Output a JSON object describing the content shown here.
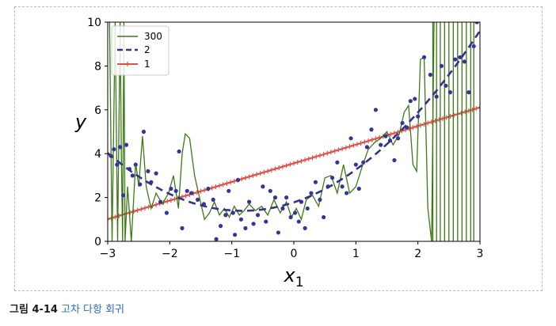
{
  "chart_data": {
    "type": "line",
    "xlabel": "x",
    "xlabel_sub": "1",
    "ylabel": "y",
    "xlim": [
      -3,
      3
    ],
    "ylim": [
      0,
      10
    ],
    "xticks": [
      -3,
      -2,
      -1,
      0,
      1,
      2,
      3
    ],
    "yticks": [
      0,
      2,
      4,
      6,
      8,
      10
    ],
    "xtick_labels": [
      "−3",
      "−2",
      "−1",
      "0",
      "1",
      "2",
      "3"
    ],
    "ytick_labels": [
      "0",
      "2",
      "4",
      "6",
      "8",
      "10"
    ],
    "legend_position": "top-left",
    "series": [
      {
        "name": "300",
        "color": "#3c7a16",
        "style": "solid"
      },
      {
        "name": "2",
        "color": "#33338a",
        "style": "dashed"
      },
      {
        "name": "1",
        "color": "#e0504b",
        "style": "solid-plus-markers"
      }
    ],
    "line_300": {
      "x": [
        -2.97,
        -2.93,
        -2.88,
        -2.84,
        -2.8,
        -2.78,
        -2.76,
        -2.74,
        -2.72,
        -2.68,
        -2.62,
        -2.55,
        -2.5,
        -2.44,
        -2.38,
        -2.3,
        -2.22,
        -2.12,
        -2.02,
        -1.94,
        -1.86,
        -1.8,
        -1.75,
        -1.68,
        -1.6,
        -1.52,
        -1.44,
        -1.36,
        -1.28,
        -1.2,
        -1.12,
        -1.04,
        -0.96,
        -0.88,
        -0.8,
        -0.72,
        -0.62,
        -0.52,
        -0.42,
        -0.32,
        -0.22,
        -0.12,
        -0.04,
        0.04,
        0.12,
        0.2,
        0.3,
        0.4,
        0.5,
        0.6,
        0.7,
        0.8,
        0.9,
        1.0,
        1.1,
        1.2,
        1.3,
        1.4,
        1.5,
        1.6,
        1.7,
        1.78,
        1.85,
        1.92,
        1.98,
        2.04,
        2.1,
        2.16,
        2.22,
        2.26
      ],
      "y": [
        10.0,
        0.0,
        10.0,
        0.0,
        10.0,
        4.0,
        0.0,
        10.0,
        0.0,
        2.5,
        0.0,
        3.6,
        2.5,
        4.8,
        2.5,
        1.5,
        2.2,
        1.7,
        2.2,
        3.0,
        1.5,
        4.0,
        4.9,
        4.7,
        3.0,
        2.0,
        1.0,
        1.3,
        1.8,
        1.2,
        1.5,
        1.1,
        1.6,
        1.2,
        1.4,
        1.7,
        1.4,
        1.6,
        1.2,
        1.9,
        1.3,
        1.8,
        1.1,
        1.5,
        1.0,
        1.9,
        2.1,
        1.6,
        2.9,
        3.0,
        2.2,
        3.5,
        2.2,
        2.5,
        3.4,
        4.2,
        4.5,
        4.7,
        5.0,
        4.4,
        4.9,
        5.9,
        6.2,
        3.5,
        3.2,
        8.3,
        8.4,
        1.5,
        0.0,
        10.0
      ],
      "spike_x": [
        2.24,
        2.3,
        2.36,
        2.43,
        2.5,
        2.57,
        2.64,
        2.71,
        2.78,
        2.85,
        2.9
      ]
    },
    "line_2": {
      "coefficients": [
        1.78,
        0.93,
        0.56
      ]
    },
    "line_1": {
      "coefficients": [
        3.56,
        0.85
      ]
    },
    "scatter_points": {
      "x": [
        -2.95,
        -2.9,
        -2.85,
        -2.8,
        -2.75,
        -2.7,
        -2.65,
        -2.6,
        -2.55,
        -2.48,
        -2.42,
        -2.35,
        -2.3,
        -2.22,
        -2.15,
        -2.05,
        -1.98,
        -1.9,
        -1.85,
        -1.8,
        -1.72,
        -1.65,
        -1.55,
        -1.45,
        -1.38,
        -1.3,
        -1.25,
        -1.18,
        -1.1,
        -1.05,
        -0.98,
        -0.95,
        -0.9,
        -0.85,
        -0.78,
        -0.72,
        -0.65,
        -0.58,
        -0.5,
        -0.45,
        -0.38,
        -0.3,
        -0.25,
        -0.18,
        -0.12,
        -0.05,
        0.02,
        0.08,
        0.12,
        0.18,
        0.22,
        0.28,
        0.35,
        0.42,
        0.48,
        0.55,
        0.62,
        0.7,
        0.78,
        0.85,
        0.92,
        1.0,
        1.05,
        1.12,
        1.18,
        1.25,
        1.32,
        1.4,
        1.48,
        1.55,
        1.62,
        1.68,
        1.75,
        1.82,
        1.88,
        1.95,
        2.0,
        2.1,
        2.2,
        2.3,
        2.38,
        2.45,
        2.52,
        2.6,
        2.68,
        2.75,
        2.82,
        2.9,
        2.95
      ],
      "y": [
        3.9,
        4.2,
        3.5,
        4.3,
        2.1,
        4.4,
        3.3,
        3.0,
        3.5,
        2.6,
        5.0,
        3.2,
        2.7,
        3.1,
        1.8,
        1.3,
        2.4,
        2.3,
        4.1,
        0.6,
        2.3,
        2.2,
        1.9,
        1.7,
        2.4,
        1.9,
        0.1,
        0.7,
        1.2,
        2.3,
        1.3,
        0.3,
        2.8,
        1.0,
        0.6,
        1.8,
        0.8,
        1.2,
        2.5,
        0.9,
        2.3,
        2.0,
        0.4,
        1.5,
        2.0,
        1.1,
        1.3,
        0.9,
        1.8,
        0.6,
        1.5,
        2.2,
        2.7,
        1.9,
        1.1,
        2.5,
        2.9,
        3.6,
        2.5,
        2.2,
        4.7,
        3.5,
        2.4,
        3.6,
        4.3,
        5.1,
        6.0,
        4.4,
        4.8,
        4.6,
        3.7,
        4.7,
        5.4,
        5.2,
        6.4,
        6.5,
        5.7,
        8.4,
        7.6,
        6.6,
        8.0,
        7.1,
        6.8,
        8.3,
        8.4,
        8.2,
        6.8,
        8.9,
        10.0
      ]
    }
  },
  "caption": {
    "number": "그림 4-14",
    "text": "고차 다항 회귀"
  }
}
